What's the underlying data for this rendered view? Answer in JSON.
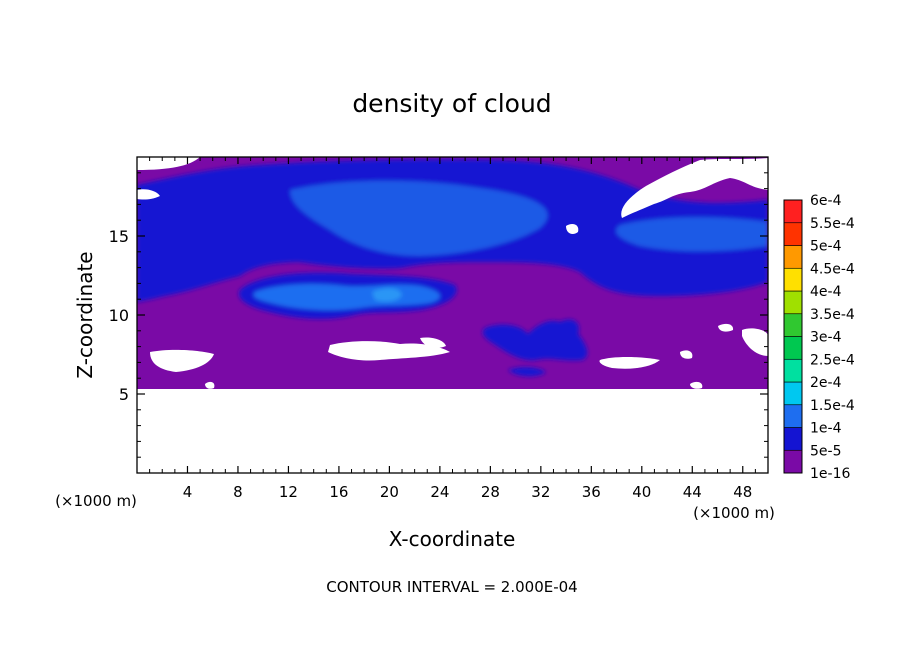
{
  "chart_data": {
    "type": "heatmap",
    "title": "density of cloud",
    "xlabel": "X-coordinate",
    "ylabel": "Z-coordinate",
    "x_unit": "(×1000 m)",
    "x_unit_right": "(×1000 m)",
    "xlim": [
      0,
      50
    ],
    "ylim": [
      0,
      20
    ],
    "xticks": [
      4,
      8,
      12,
      16,
      20,
      24,
      28,
      32,
      36,
      40,
      44,
      48
    ],
    "yticks": [
      5,
      10,
      15
    ],
    "footer": "CONTOUR INTERVAL = 2.000E-04",
    "colorbar": {
      "levels": [
        "1e-16",
        "5e-5",
        "1e-4",
        "1.5e-4",
        "2e-4",
        "2.5e-4",
        "3e-4",
        "3.5e-4",
        "4e-4",
        "4.5e-4",
        "5e-4",
        "5.5e-4",
        "6e-4"
      ],
      "colors": [
        "#7a0aa6",
        "#0a0a8c",
        "#1414d2",
        "#1e6ef0",
        "#00c8f0",
        "#00e0a0",
        "#00c850",
        "#30c830",
        "#a0e000",
        "#ffe000",
        "#ff9900",
        "#ff3300",
        "#ff2020",
        "#ff8c8c"
      ]
    },
    "regions": {
      "no_cloud_below_z": 5.3,
      "background_level": "1e-16",
      "upper_cloud_layer_z": [
        12.5,
        19.5
      ],
      "upper_cloud_level": "5e-5",
      "upper_core_level": "1e-4",
      "mid_core_x": [
        8,
        25
      ],
      "mid_core_z": [
        10.5,
        12.5
      ],
      "mid_core_level": "1.5e-4",
      "low_cell_x": [
        27,
        36
      ],
      "low_cell_z": [
        7.5,
        10
      ],
      "low_cell_level": "1e-4"
    }
  }
}
